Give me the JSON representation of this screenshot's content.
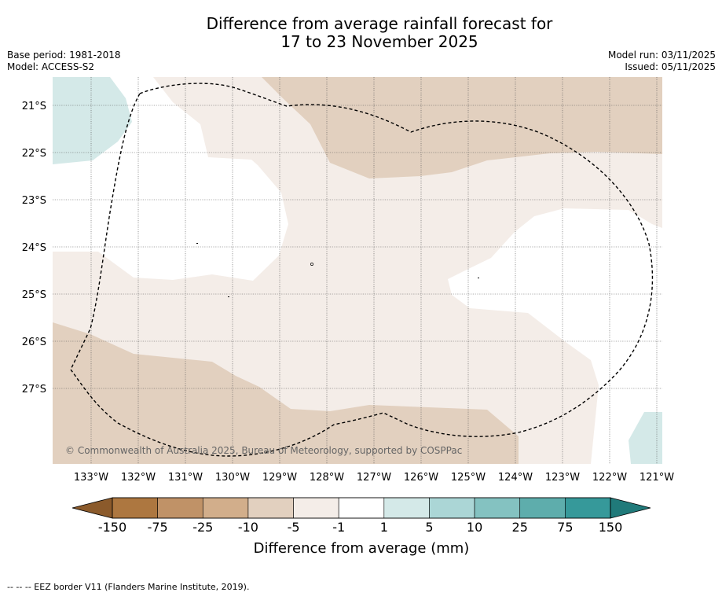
{
  "title_line1": "Difference from average rainfall forecast for",
  "title_line2": "17 to 23 November 2025",
  "base_period": "Base period: 1981-2018",
  "model": "Model: ACCESS-S2",
  "model_run": "Model run: 03/11/2025",
  "issued": "Issued: 05/11/2025",
  "copyright": "© Commonwealth of Australia 2025, Bureau of Meteorology, supported by COSPPac",
  "lat_labels": [
    "21°S",
    "22°S",
    "23°S",
    "24°S",
    "25°S",
    "26°S",
    "27°S"
  ],
  "lon_labels": [
    "133°W",
    "132°W",
    "131°W",
    "130°W",
    "129°W",
    "128°W",
    "127°W",
    "126°W",
    "125°W",
    "124°W",
    "123°W",
    "122°W",
    "121°W"
  ],
  "colorbar": {
    "tick_labels": [
      "-150",
      "-75",
      "-25",
      "-10",
      "-5",
      "-1",
      "1",
      "5",
      "10",
      "25",
      "75",
      "150"
    ],
    "colors": [
      "#ad7740",
      "#c09267",
      "#d2ae8b",
      "#e2d0bf",
      "#f4ede8",
      "#ffffff",
      "#d4e9e8",
      "#abd6d6",
      "#84c2c1",
      "#5eadac",
      "#36999a"
    ],
    "extend_low_color": "#8b5a2b",
    "extend_high_color": "#207a7a",
    "label": "Difference from average (mm)"
  },
  "footer": "--  --  -- EEZ border V11 (Flanders Marine Institute, 2019)."
}
